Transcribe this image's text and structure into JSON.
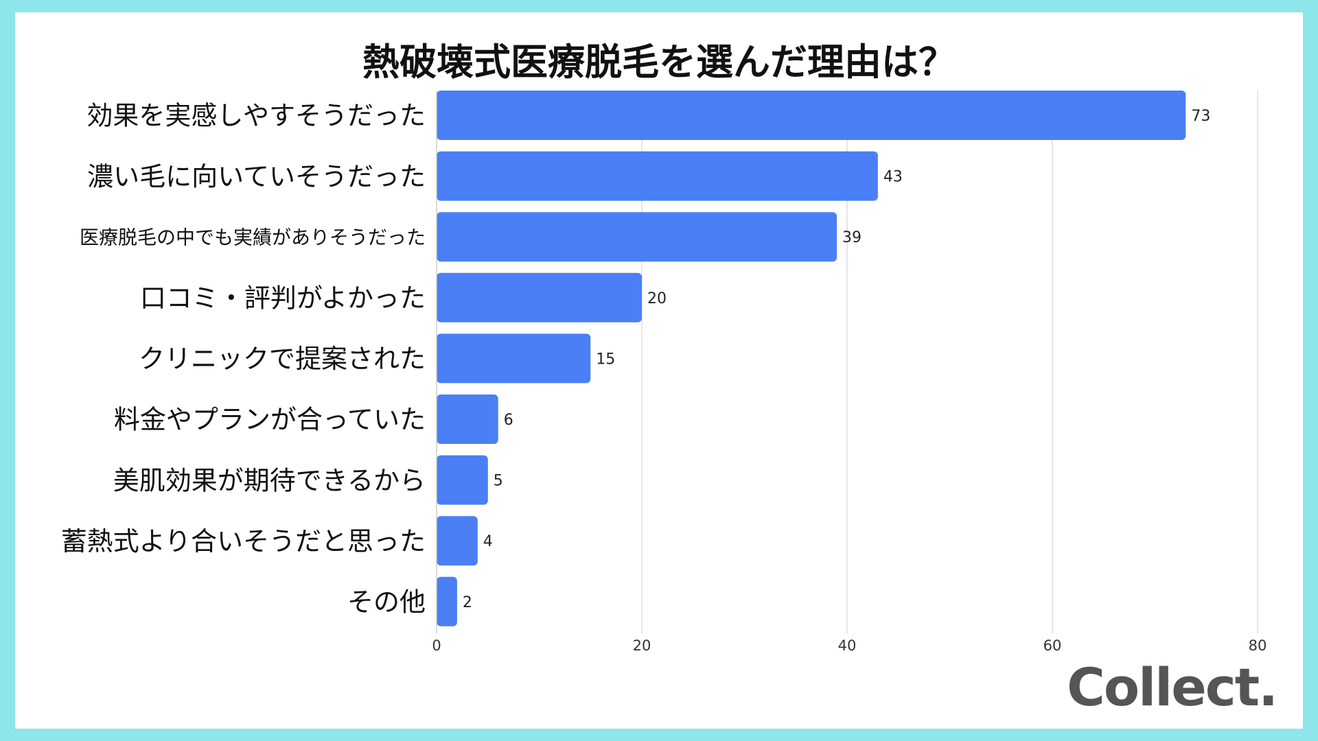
{
  "title": "熱破壊式医療脱毛を選んだ理由は？",
  "logo": "Collect.",
  "colors": {
    "background": "#8ee6ea",
    "bar": "#4a7ff6",
    "grid": "#dddddd",
    "text": "#111111"
  },
  "chart_data": {
    "type": "bar",
    "orientation": "horizontal",
    "title": "熱破壊式医療脱毛を選んだ理由は？",
    "categories": [
      "効果を実感しやすそうだった",
      "濃い毛に向いていそうだった",
      "医療脱毛の中でも実績がありそうだった",
      "口コミ・評判がよかった",
      "クリニックで提案された",
      "料金やプランが合っていた",
      "美肌効果が期待できるから",
      "蓄熱式より合いそうだと思った",
      "その他"
    ],
    "values": [
      73,
      43,
      39,
      20,
      15,
      6,
      5,
      4,
      2
    ],
    "xlim": [
      0,
      80
    ],
    "xticks": [
      "0",
      "20",
      "40",
      "60",
      "80"
    ],
    "grid": "vertical",
    "data_labels": true
  }
}
